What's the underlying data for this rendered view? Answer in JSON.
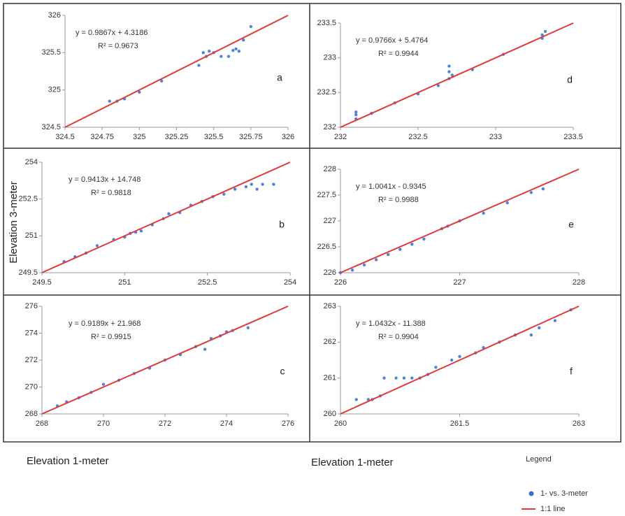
{
  "chart_data": [
    {
      "type": "scatter",
      "panel": "a",
      "annotations": [
        "y = 0.9867x + 4.3186",
        "R² = 0.9673"
      ],
      "xlim": [
        324.5,
        326
      ],
      "ylim": [
        324.5,
        326
      ],
      "xticks": [
        324.5,
        324.75,
        325,
        325.25,
        325.5,
        325.75,
        326
      ],
      "yticks": [
        324.5,
        325,
        325.5,
        326
      ],
      "series": [
        {
          "x": [
            324.8,
            324.85,
            324.9,
            325,
            325.15,
            325.4,
            325.43,
            325.45,
            325.47,
            325.5,
            325.55,
            325.6,
            325.63,
            325.65,
            325.67,
            325.7,
            325.75
          ],
          "values": [
            324.85,
            324.85,
            324.88,
            324.97,
            325.12,
            325.33,
            325.5,
            325.45,
            325.52,
            325.5,
            325.45,
            325.45,
            325.53,
            325.55,
            325.52,
            325.67,
            325.85
          ]
        }
      ]
    },
    {
      "type": "scatter",
      "panel": "d",
      "annotations": [
        "y = 0.9766x + 5.4764",
        "R² = 0.9944"
      ],
      "xlim": [
        232,
        233.5
      ],
      "ylim": [
        232,
        233.5
      ],
      "xticks": [
        232,
        232.5,
        233,
        233.5
      ],
      "yticks": [
        232,
        232.5,
        233,
        233.5
      ],
      "series": [
        {
          "x": [
            232.1,
            232.1,
            232.1,
            232.2,
            232.35,
            232.5,
            232.63,
            232.7,
            232.7,
            232.7,
            232.72,
            232.85,
            233.05,
            233.3,
            233.3,
            233.32
          ],
          "values": [
            232.12,
            232.18,
            232.22,
            232.2,
            232.35,
            232.48,
            232.6,
            232.7,
            232.8,
            232.88,
            232.75,
            232.83,
            233.05,
            233.28,
            233.33,
            233.38
          ]
        }
      ]
    },
    {
      "type": "scatter",
      "panel": "b",
      "annotations": [
        "y = 0.9413x + 14.748",
        "R² = 0.9818"
      ],
      "xlim": [
        249.5,
        254
      ],
      "ylim": [
        249.5,
        254
      ],
      "xticks": [
        249.5,
        251,
        252.5,
        254
      ],
      "yticks": [
        249.5,
        251,
        252.5,
        254
      ],
      "series": [
        {
          "x": [
            249.9,
            250.1,
            250.3,
            250.5,
            250.8,
            251,
            251.1,
            251.2,
            251.3,
            251.5,
            251.7,
            251.8,
            252,
            252.2,
            252.4,
            252.6,
            252.8,
            253,
            253.2,
            253.3,
            253.5,
            253.7,
            253.4
          ],
          "values": [
            249.95,
            250.15,
            250.3,
            250.6,
            250.85,
            250.95,
            251.1,
            251.15,
            251.2,
            251.45,
            251.7,
            251.9,
            251.95,
            252.25,
            252.4,
            252.6,
            252.7,
            252.9,
            253,
            253.1,
            253.1,
            253.1,
            252.9
          ]
        }
      ]
    },
    {
      "type": "scatter",
      "panel": "e",
      "annotations": [
        "y = 1.0041x - 0.9345",
        "R² = 0.9988"
      ],
      "xlim": [
        226,
        228
      ],
      "ylim": [
        226,
        228
      ],
      "xticks": [
        226,
        227,
        228
      ],
      "yticks": [
        226,
        226.5,
        227,
        227.5,
        228
      ],
      "series": [
        {
          "x": [
            226,
            226.1,
            226.2,
            226.3,
            226.4,
            226.5,
            226.6,
            226.7,
            226.85,
            226.9,
            227,
            227.2,
            227.4,
            227.6,
            227.7
          ],
          "values": [
            226,
            226.05,
            226.15,
            226.25,
            226.35,
            226.45,
            226.55,
            226.65,
            226.85,
            226.9,
            227,
            227.15,
            227.35,
            227.55,
            227.62
          ]
        }
      ]
    },
    {
      "type": "scatter",
      "panel": "c",
      "annotations": [
        "y = 0.9189x + 21.968",
        "R² = 0.9915"
      ],
      "xlim": [
        268,
        276
      ],
      "ylim": [
        268,
        276
      ],
      "xticks": [
        268,
        270,
        272,
        274,
        276
      ],
      "yticks": [
        268,
        270,
        272,
        274,
        276
      ],
      "series": [
        {
          "x": [
            268.5,
            268.8,
            269.2,
            269.6,
            270,
            270.5,
            271,
            271.5,
            272,
            272.5,
            273,
            273.5,
            273.8,
            274,
            274.2,
            274.7,
            273.3
          ],
          "values": [
            268.6,
            268.9,
            269.2,
            269.6,
            270.2,
            270.5,
            271,
            271.4,
            272,
            272.4,
            273,
            273.6,
            273.8,
            274.1,
            274.2,
            274.4,
            272.8
          ]
        }
      ]
    },
    {
      "type": "scatter",
      "panel": "f",
      "annotations": [
        "y = 1.0432x - 11.388",
        "R² = 0.9904"
      ],
      "xlim": [
        260,
        263
      ],
      "ylim": [
        260,
        263
      ],
      "xticks": [
        260,
        261.5,
        263
      ],
      "yticks": [
        260,
        261,
        262,
        263
      ],
      "series": [
        {
          "x": [
            260.2,
            260.35,
            260.4,
            260.5,
            260.55,
            260.7,
            260.8,
            260.9,
            261,
            261.1,
            261.2,
            261.4,
            261.5,
            261.7,
            261.8,
            262,
            262.2,
            262.4,
            262.5,
            262.7,
            262.9
          ],
          "values": [
            260.4,
            260.4,
            260.4,
            260.5,
            261,
            261,
            261,
            261,
            261,
            261.1,
            261.3,
            261.5,
            261.6,
            261.7,
            261.85,
            262,
            262.2,
            262.2,
            262.4,
            262.6,
            262.9
          ]
        }
      ]
    }
  ],
  "y_axis_label": "Elevation 3-meter",
  "x_axis_labels": [
    "Elevation 1-meter",
    "Elevation 1-meter"
  ],
  "legend": {
    "title": "Legend",
    "entries": [
      {
        "label": "1- vs. 3-meter",
        "color": "#2f6fd0"
      },
      {
        "label": "1:1 line",
        "color": "#e03a3a"
      }
    ]
  }
}
